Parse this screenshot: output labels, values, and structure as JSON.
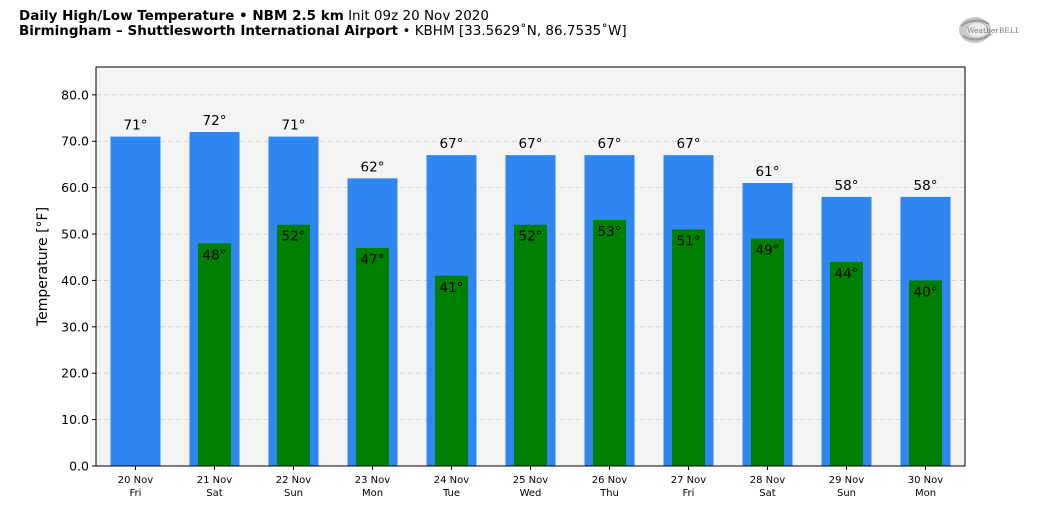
{
  "header": {
    "title_bold": "Daily High/Low Temperature • NBM 2.5 km",
    "title_rest": "Init 09z 20 Nov 2020",
    "location_bold": "Birmingham – Shuttlesworth International Airport",
    "location_rest": "• KBHM [33.5629˚N, 86.7535˚W]"
  },
  "logo": {
    "text": "WeatherBELL"
  },
  "colors": {
    "high": "#2e86f0",
    "low": "#008000",
    "plot_bg": "#f4f4f4"
  },
  "chart_data": {
    "type": "bar",
    "ylabel": "Temperature [°F]",
    "ylim": [
      0,
      86
    ],
    "yticks": [
      "0.0",
      "10.0",
      "20.0",
      "30.0",
      "40.0",
      "50.0",
      "60.0",
      "70.0",
      "80.0"
    ],
    "grid": true,
    "categories": [
      "20 Nov",
      "21 Nov",
      "22 Nov",
      "23 Nov",
      "24 Nov",
      "25 Nov",
      "26 Nov",
      "27 Nov",
      "28 Nov",
      "29 Nov",
      "30 Nov"
    ],
    "weekdays": [
      "Fri",
      "Sat",
      "Sun",
      "Mon",
      "Tue",
      "Wed",
      "Thu",
      "Fri",
      "Sat",
      "Sun",
      "Mon"
    ],
    "series": [
      {
        "key": "high",
        "values": [
          71,
          72,
          71,
          62,
          67,
          67,
          67,
          67,
          61,
          58,
          58
        ],
        "labels": [
          "71°",
          "72°",
          "71°",
          "62°",
          "67°",
          "67°",
          "67°",
          "67°",
          "61°",
          "58°",
          "58°"
        ]
      },
      {
        "key": "low",
        "values": [
          null,
          48,
          52,
          47,
          41,
          52,
          53,
          51,
          49,
          44,
          40
        ],
        "labels": [
          "",
          "48°",
          "52°",
          "47°",
          "41°",
          "52°",
          "53°",
          "51°",
          "49°",
          "44°",
          "40°"
        ]
      }
    ]
  }
}
